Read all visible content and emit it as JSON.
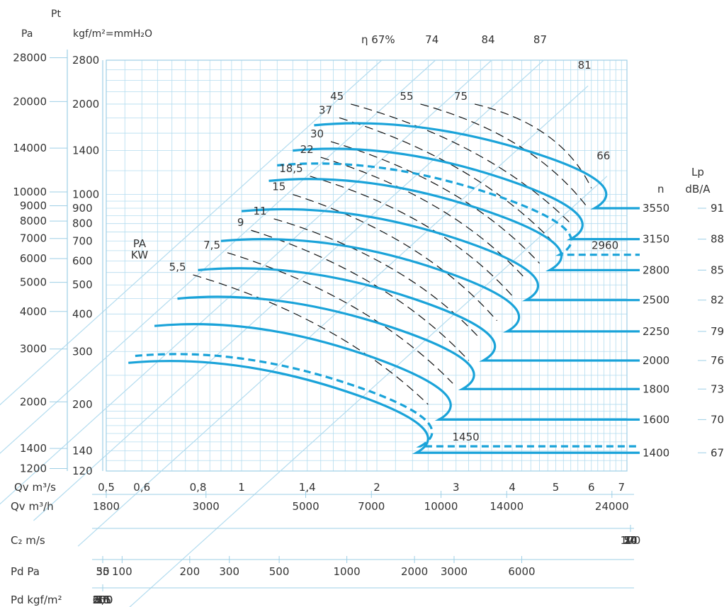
{
  "chart_data": {
    "type": "line",
    "title": "",
    "colors": {
      "curve": "#1aa3d9",
      "grid": "#b3dcef",
      "axis": "#9ecfe6",
      "kw": "#111111",
      "text": "#333333"
    },
    "y_axis_pa": {
      "label": "Pa",
      "ticks": [
        "28000",
        "20000",
        "14000",
        "10000",
        "9000",
        "8000",
        "7000",
        "6000",
        "5000",
        "4000",
        "3000",
        "2000",
        "1400",
        "1200"
      ]
    },
    "y_axis_kgf": {
      "label": "kgf/m²=mmH₂O",
      "ticks": [
        "2800",
        "2000",
        "1400",
        "1000",
        "900",
        "800",
        "700",
        "600",
        "500",
        "400",
        "300",
        "200",
        "140",
        "120"
      ],
      "values": [
        2800,
        2000,
        1400,
        1000,
        900,
        800,
        700,
        600,
        500,
        400,
        300,
        200,
        140,
        120
      ],
      "ylim": [
        120,
        2800
      ],
      "scale": "log"
    },
    "y_axis_title": "Pt",
    "x_axis": {
      "label": "Qv m³/s",
      "ticks": [
        "0,5",
        "0,6",
        "0,8",
        "1",
        "1,4",
        "2",
        "3",
        "4",
        "5",
        "6",
        "7"
      ],
      "values": [
        0.5,
        0.6,
        0.8,
        1,
        1.4,
        2,
        3,
        4,
        5,
        6,
        7
      ],
      "xlim": [
        0.5,
        7.2
      ],
      "scale": "log"
    },
    "sub_axes": [
      {
        "label": "Qv m³/h",
        "ticks": [
          "1800",
          "3000",
          "5000",
          "7000",
          "10000",
          "14000",
          "24000"
        ],
        "values": [
          1800,
          3000,
          5000,
          7000,
          10000,
          14000,
          24000
        ],
        "factor": 3600
      },
      {
        "label": "C₂ m/s",
        "ticks": [
          "7",
          "10",
          "14",
          "20",
          "30",
          "50",
          "70",
          "100"
        ],
        "values": [
          7,
          10,
          14,
          20,
          30,
          50,
          70,
          100
        ],
        "factor": 0.07
      },
      {
        "label": "Pd Pa",
        "ticks": [
          "35",
          "50",
          "100",
          "200",
          "300",
          "500",
          "1000",
          "2000",
          "3000",
          "6000"
        ],
        "values": [
          35,
          50,
          100,
          200,
          300,
          500,
          1000,
          2000,
          3000,
          6000
        ],
        "factor": 0.00294,
        "power": 2
      },
      {
        "label": "Pd kgf/m²",
        "ticks": [
          "3,5",
          "5",
          "10",
          "20",
          "30",
          "50",
          "100",
          "200",
          "300",
          "600"
        ],
        "values": [
          3.5,
          5,
          10,
          20,
          30,
          50,
          100,
          200,
          300,
          600
        ],
        "factor": 0.0003,
        "power": 2
      }
    ],
    "efficiency_lines": {
      "labels": [
        "η 67%",
        "74",
        "84",
        "87",
        "81",
        "66"
      ],
      "anchors": [
        [
          2.05,
          2800
        ],
        [
          2.7,
          2800
        ],
        [
          3.6,
          2800
        ],
        [
          4.7,
          2800
        ],
        [
          5.9,
          2300
        ],
        [
          6.5,
          1150
        ]
      ]
    },
    "speed_label": "n",
    "noise_label": "Lp\ndB/A",
    "speed_curves": [
      {
        "rpm": "3550",
        "lp": "91",
        "dashed": false,
        "pt0": 1700,
        "q0": 1.45,
        "qpeak": 2.4,
        "qend": 6.1,
        "pend": 900
      },
      {
        "rpm": "3150",
        "lp": "88",
        "dashed": false,
        "pt0": 1400,
        "q0": 1.3,
        "qpeak": 2.15,
        "qend": 5.4,
        "pend": 710
      },
      {
        "rpm": "2960",
        "lp": "",
        "dashed": true,
        "pt0": 1250,
        "q0": 1.2,
        "qpeak": 2.0,
        "qend": 5.1,
        "pend": 630
      },
      {
        "rpm": "2800",
        "lp": "85",
        "dashed": false,
        "pt0": 1110,
        "q0": 1.15,
        "qpeak": 1.9,
        "qend": 4.85,
        "pend": 560
      },
      {
        "rpm": "2500",
        "lp": "82",
        "dashed": false,
        "pt0": 880,
        "q0": 1.0,
        "qpeak": 1.7,
        "qend": 4.3,
        "pend": 445
      },
      {
        "rpm": "2250",
        "lp": "79",
        "dashed": false,
        "pt0": 700,
        "q0": 0.9,
        "qpeak": 1.55,
        "qend": 3.9,
        "pend": 350
      },
      {
        "rpm": "2000",
        "lp": "76",
        "dashed": false,
        "pt0": 560,
        "q0": 0.8,
        "qpeak": 1.35,
        "qend": 3.45,
        "pend": 280
      },
      {
        "rpm": "1800",
        "lp": "73",
        "dashed": false,
        "pt0": 450,
        "q0": 0.72,
        "qpeak": 1.2,
        "qend": 3.1,
        "pend": 225
      },
      {
        "rpm": "1600",
        "lp": "70",
        "dashed": false,
        "pt0": 365,
        "q0": 0.64,
        "qpeak": 1.08,
        "qend": 2.75,
        "pend": 178
      },
      {
        "rpm": "1450",
        "lp": "",
        "dashed": true,
        "pt0": 290,
        "q0": 0.58,
        "qpeak": 0.98,
        "qend": 2.5,
        "pend": 145
      },
      {
        "rpm": "1400",
        "lp": "67",
        "dashed": false,
        "pt0": 275,
        "q0": 0.56,
        "qpeak": 0.95,
        "qend": 2.45,
        "pend": 138
      }
    ],
    "power_label": "PA\nKW",
    "power_lines": [
      {
        "kw": "5,5",
        "start": [
          0.78,
          540
        ],
        "end": [
          2.6,
          200
        ]
      },
      {
        "kw": "7,5",
        "start": [
          0.93,
          640
        ],
        "end": [
          2.95,
          235
        ]
      },
      {
        "kw": "9",
        "start": [
          1.05,
          760
        ],
        "end": [
          3.2,
          280
        ]
      },
      {
        "kw": "11",
        "start": [
          1.18,
          830
        ],
        "end": [
          3.4,
          330
        ]
      },
      {
        "kw": "15",
        "start": [
          1.3,
          1000
        ],
        "end": [
          3.7,
          380
        ]
      },
      {
        "kw": "18,5",
        "start": [
          1.42,
          1150
        ],
        "end": [
          4.0,
          460
        ]
      },
      {
        "kw": "22",
        "start": [
          1.5,
          1330
        ],
        "end": [
          4.3,
          520
        ]
      },
      {
        "kw": "30",
        "start": [
          1.58,
          1500
        ],
        "end": [
          4.6,
          590
        ]
      },
      {
        "kw": "37",
        "start": [
          1.65,
          1800
        ],
        "end": [
          5.0,
          680
        ]
      },
      {
        "kw": "45",
        "start": [
          1.75,
          2000
        ],
        "end": [
          5.4,
          800
        ]
      },
      {
        "kw": "55",
        "start": [
          2.5,
          2000
        ],
        "end": [
          5.9,
          900
        ]
      },
      {
        "kw": "75",
        "start": [
          3.3,
          2000
        ],
        "end": [
          6.0,
          1050
        ]
      }
    ]
  }
}
